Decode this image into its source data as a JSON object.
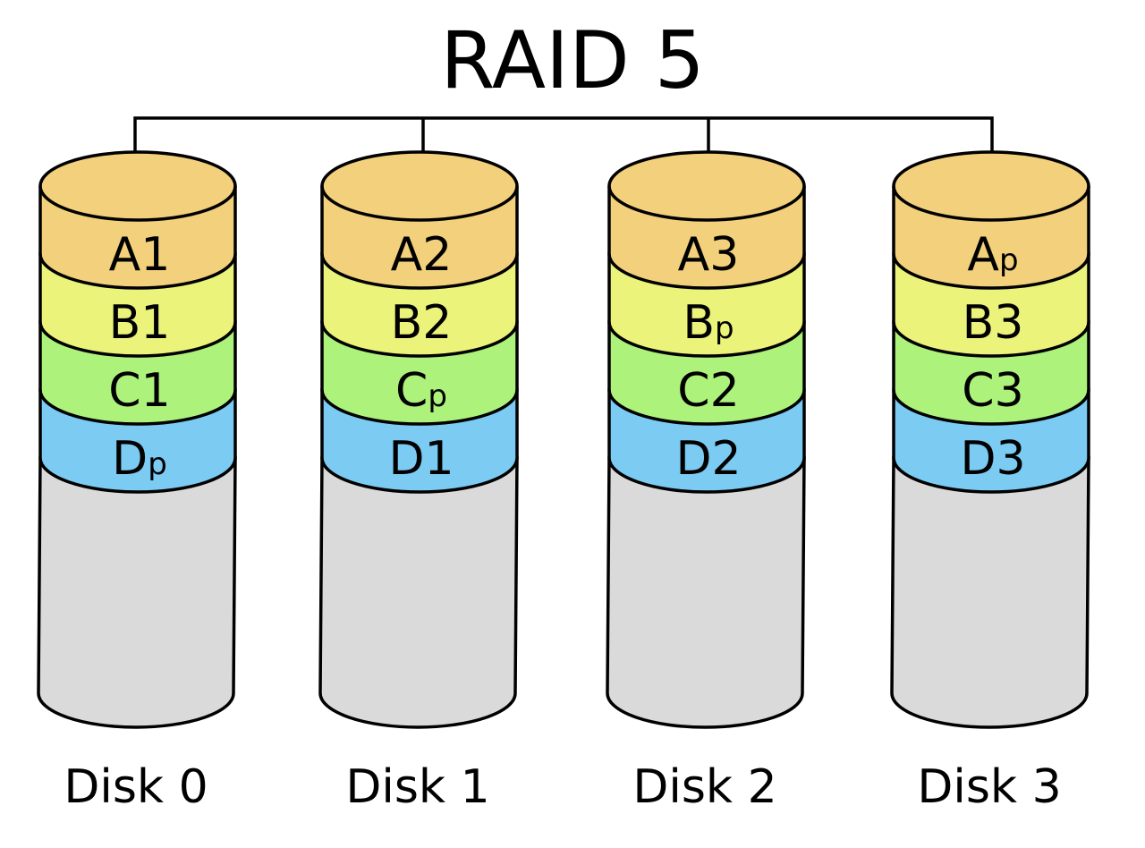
{
  "title": "RAID 5",
  "colors": {
    "A": "#f3d07b",
    "B": "#ebf37b",
    "C": "#adf37b",
    "D": "#7bcbf3",
    "empty": "#dadada",
    "stroke": "#000000"
  },
  "rows": [
    "A",
    "B",
    "C",
    "D"
  ],
  "disks": [
    {
      "label": "Disk 0",
      "blocks": [
        {
          "base": "A1",
          "sub": ""
        },
        {
          "base": "B1",
          "sub": ""
        },
        {
          "base": "C1",
          "sub": ""
        },
        {
          "base": "D",
          "sub": "p"
        }
      ]
    },
    {
      "label": "Disk 1",
      "blocks": [
        {
          "base": "A2",
          "sub": ""
        },
        {
          "base": "B2",
          "sub": ""
        },
        {
          "base": "C",
          "sub": "p"
        },
        {
          "base": "D1",
          "sub": ""
        }
      ]
    },
    {
      "label": "Disk 2",
      "blocks": [
        {
          "base": "A3",
          "sub": ""
        },
        {
          "base": "B",
          "sub": "p"
        },
        {
          "base": "C2",
          "sub": ""
        },
        {
          "base": "D2",
          "sub": ""
        }
      ]
    },
    {
      "label": "Disk 3",
      "blocks": [
        {
          "base": "A",
          "sub": "p"
        },
        {
          "base": "B3",
          "sub": ""
        },
        {
          "base": "C3",
          "sub": ""
        },
        {
          "base": "D3",
          "sub": ""
        }
      ]
    }
  ]
}
